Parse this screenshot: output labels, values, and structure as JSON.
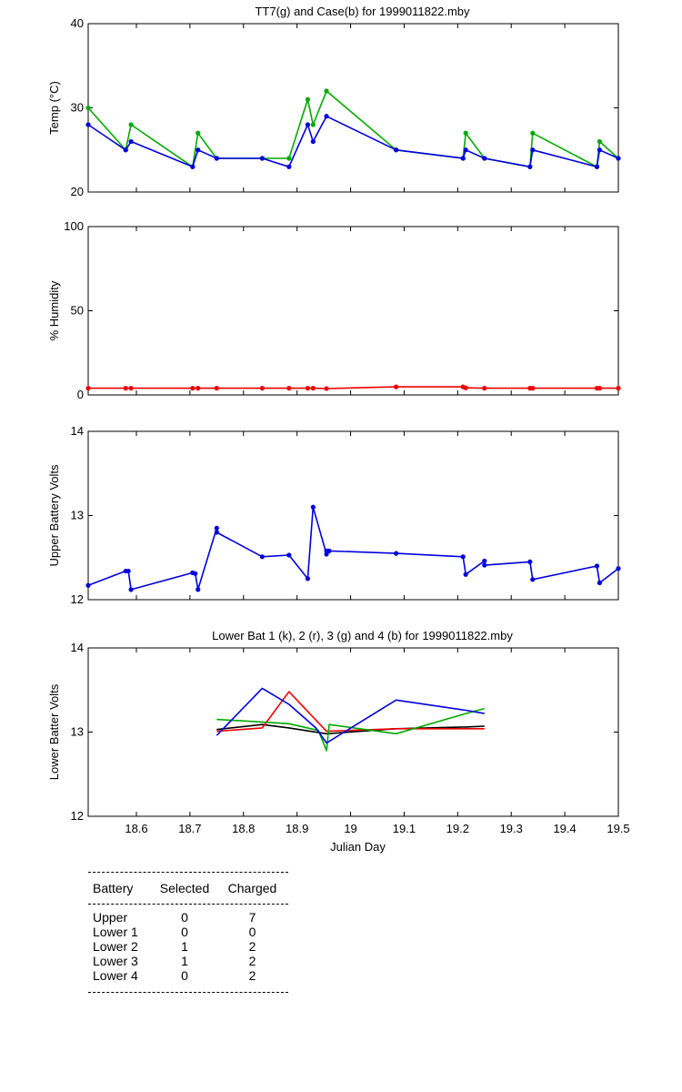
{
  "chart_data": [
    {
      "type": "line",
      "title": "TT7(g) and Case(b) for 1999011822.mby",
      "ylabel": "Temp (°C)",
      "xlim": [
        18.51,
        19.5
      ],
      "ylim": [
        20,
        40
      ],
      "yticks": [
        20,
        30,
        40
      ],
      "grid": false,
      "series": [
        {
          "color": "#00aa00",
          "x": [
            18.51,
            18.58,
            18.59,
            18.705,
            18.715,
            18.75,
            18.835,
            18.885,
            18.92,
            18.93,
            18.955,
            19.085,
            19.21,
            19.215,
            19.25,
            19.335,
            19.34,
            19.46,
            19.465,
            19.5
          ],
          "y": [
            30,
            25,
            28,
            23,
            27,
            24,
            24,
            24,
            31,
            28,
            32,
            25,
            24,
            27,
            24,
            23,
            27,
            23,
            26,
            24
          ]
        },
        {
          "color": "#0000dd",
          "x": [
            18.51,
            18.58,
            18.59,
            18.705,
            18.715,
            18.75,
            18.835,
            18.885,
            18.92,
            18.93,
            18.955,
            19.085,
            19.21,
            19.215,
            19.25,
            19.335,
            19.34,
            19.46,
            19.465,
            19.5
          ],
          "y": [
            28,
            25,
            26,
            23,
            25,
            24,
            24,
            23,
            28,
            26,
            29,
            25,
            24,
            25,
            24,
            23,
            25,
            23,
            25,
            24
          ]
        }
      ]
    },
    {
      "type": "line",
      "title": "",
      "ylabel": "% Humidity",
      "xlim": [
        18.51,
        19.5
      ],
      "ylim": [
        0,
        100
      ],
      "yticks": [
        0,
        50,
        100
      ],
      "grid": false,
      "series": [
        {
          "color": "#ee0000",
          "x": [
            18.51,
            18.58,
            18.59,
            18.705,
            18.715,
            18.75,
            18.835,
            18.885,
            18.92,
            18.93,
            18.955,
            19.085,
            19.21,
            19.215,
            19.25,
            19.335,
            19.34,
            19.46,
            19.465,
            19.5
          ],
          "y": [
            4,
            4,
            4,
            4,
            4,
            4,
            4,
            4,
            4,
            4,
            3.8,
            4.8,
            4.8,
            4.2,
            4,
            4,
            4,
            4,
            4,
            4
          ]
        }
      ]
    },
    {
      "type": "line",
      "title": "",
      "ylabel": "Upper Battery Volts",
      "xlim": [
        18.51,
        19.5
      ],
      "ylim": [
        12,
        14
      ],
      "yticks": [
        12,
        13,
        14
      ],
      "grid": false,
      "series": [
        {
          "color": "#0000dd",
          "x": [
            18.51,
            18.58,
            18.585,
            18.59,
            18.705,
            18.71,
            18.715,
            18.75,
            18.75,
            18.835,
            18.885,
            18.92,
            18.93,
            18.955,
            18.955,
            18.96,
            19.085,
            19.21,
            19.215,
            19.25,
            19.25,
            19.335,
            19.34,
            19.46,
            19.465,
            19.5
          ],
          "y": [
            12.17,
            12.34,
            12.34,
            12.12,
            12.32,
            12.31,
            12.12,
            12.85,
            12.8,
            12.51,
            12.53,
            12.25,
            13.1,
            12.54,
            12.58,
            12.58,
            12.55,
            12.51,
            12.3,
            12.46,
            12.41,
            12.45,
            12.24,
            12.4,
            12.2,
            12.37
          ]
        }
      ]
    },
    {
      "type": "line",
      "title": "Lower Bat 1 (k), 2 (r), 3 (g) and 4 (b) for 1999011822.mby",
      "xlabel": "Julian Day",
      "ylabel": "Lower Batter Volts",
      "xlim": [
        18.51,
        19.5
      ],
      "ylim": [
        12,
        14
      ],
      "yticks": [
        12,
        13,
        14
      ],
      "xticks": [
        18.6,
        18.7,
        18.8,
        18.9,
        19,
        19.1,
        19.2,
        19.3,
        19.4,
        19.5
      ],
      "grid": false,
      "series": [
        {
          "color": "#000000",
          "x": [
            18.75,
            18.835,
            18.885,
            18.955,
            19.085,
            19.215,
            19.25
          ],
          "y": [
            13.03,
            13.09,
            13.05,
            12.98,
            13.04,
            13.06,
            13.07
          ]
        },
        {
          "color": "#ee0000",
          "x": [
            18.75,
            18.835,
            18.885,
            18.955,
            19.085,
            19.215,
            19.25
          ],
          "y": [
            13.01,
            13.05,
            13.48,
            13.01,
            13.04,
            13.04,
            13.04
          ]
        },
        {
          "color": "#00aa00",
          "x": [
            18.75,
            18.835,
            18.885,
            18.94,
            18.955,
            18.96,
            19.085,
            19.215,
            19.25
          ],
          "y": [
            13.15,
            13.12,
            13.1,
            13.02,
            12.78,
            13.09,
            12.98,
            13.22,
            13.28
          ]
        },
        {
          "color": "#0000dd",
          "x": [
            18.75,
            18.835,
            18.885,
            18.935,
            18.955,
            19.085,
            19.215,
            19.25
          ],
          "y": [
            12.96,
            13.52,
            13.33,
            13.05,
            12.87,
            13.38,
            13.26,
            13.22
          ]
        }
      ]
    }
  ],
  "battery_table": {
    "headers": [
      "Battery",
      "Selected",
      "Charged"
    ],
    "rows": [
      [
        "Upper",
        "0",
        "7"
      ],
      [
        "Lower 1",
        "0",
        "0"
      ],
      [
        "Lower 2",
        "1",
        "2"
      ],
      [
        "Lower 3",
        "1",
        "2"
      ],
      [
        "Lower 4",
        "0",
        "2"
      ]
    ]
  }
}
